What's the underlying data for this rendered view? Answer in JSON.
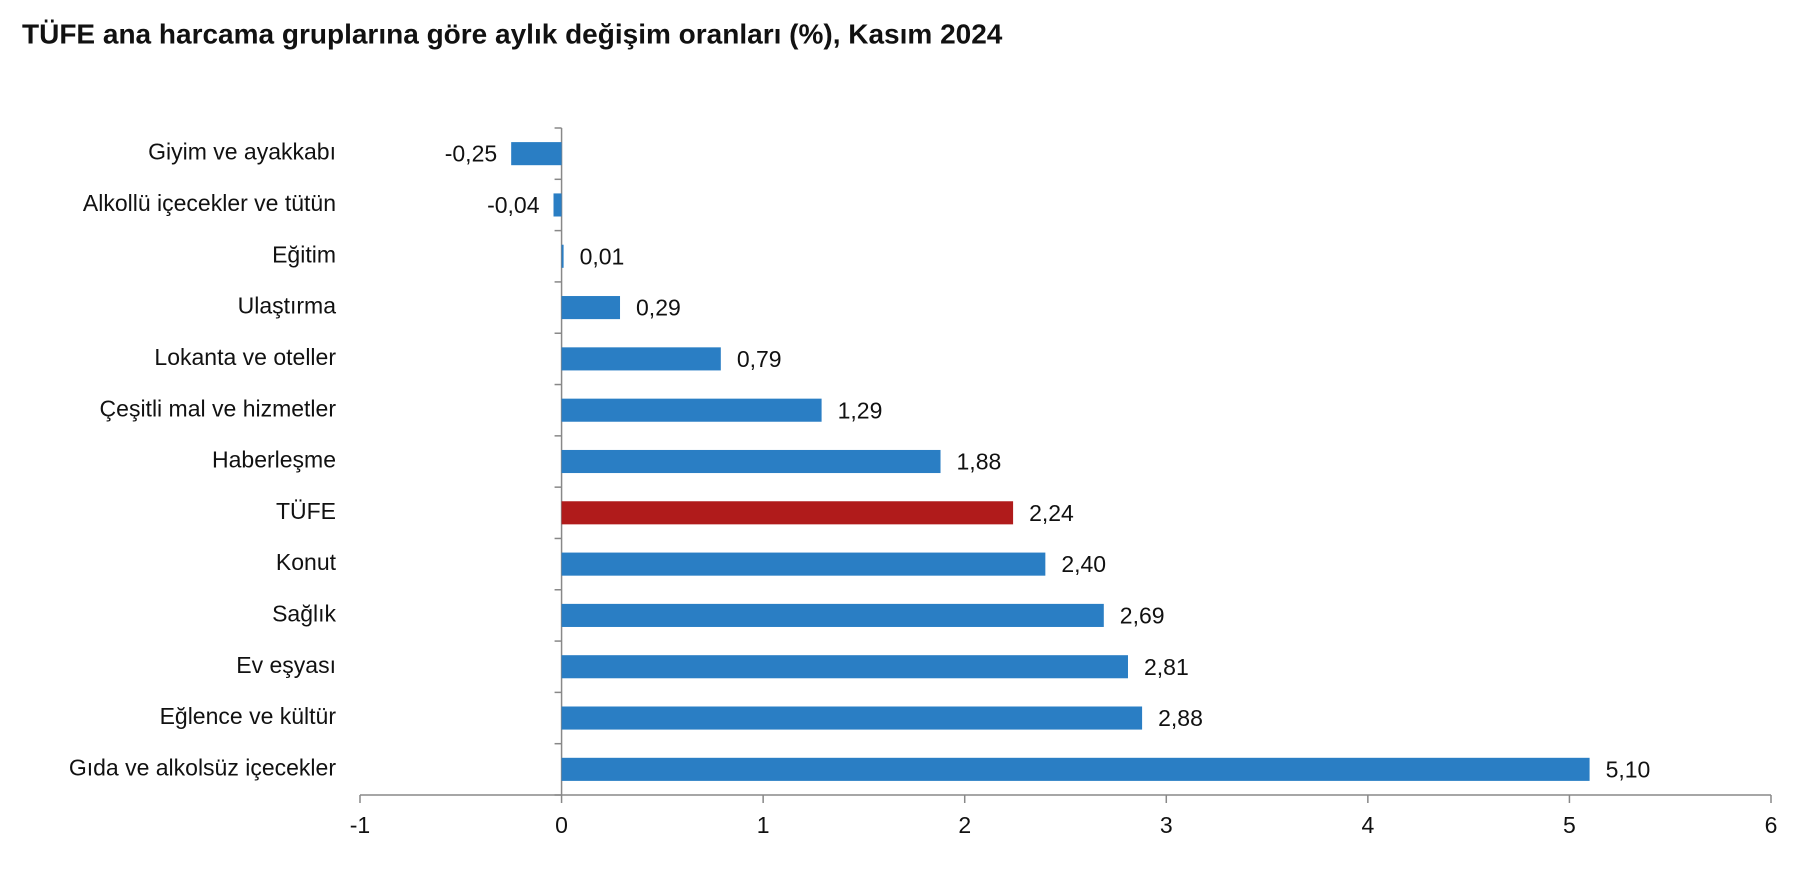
{
  "chart_data": {
    "type": "bar",
    "orientation": "horizontal",
    "title": "TÜFE ana harcama gruplarına göre aylık değişim oranları (%), Kasım 2024",
    "categories": [
      "Giyim ve ayakkabı",
      "Alkollü içecekler ve tütün",
      "Eğitim",
      "Ulaştırma",
      "Lokanta ve oteller",
      "Çeşitli mal ve hizmetler",
      "Haberleşme",
      "TÜFE",
      "Konut",
      "Sağlık",
      "Ev eşyası",
      "Eğlence ve kültür",
      "Gıda ve alkolsüz içecekler"
    ],
    "values": [
      -0.25,
      -0.04,
      0.01,
      0.29,
      0.79,
      1.29,
      1.88,
      2.24,
      2.4,
      2.69,
      2.81,
      2.88,
      5.1
    ],
    "value_labels": [
      "-0,25",
      "-0,04",
      "0,01",
      "0,29",
      "0,79",
      "1,29",
      "1,88",
      "2,24",
      "2,40",
      "2,69",
      "2,81",
      "2,88",
      "5,10"
    ],
    "colors": [
      "#2a7ec4",
      "#2a7ec4",
      "#2a7ec4",
      "#2a7ec4",
      "#2a7ec4",
      "#2a7ec4",
      "#2a7ec4",
      "#b01b1b",
      "#2a7ec4",
      "#2a7ec4",
      "#2a7ec4",
      "#2a7ec4",
      "#2a7ec4"
    ],
    "xlim": [
      -1,
      6
    ],
    "xticks": [
      -1,
      0,
      1,
      2,
      3,
      4,
      5,
      6
    ],
    "grid": false
  }
}
